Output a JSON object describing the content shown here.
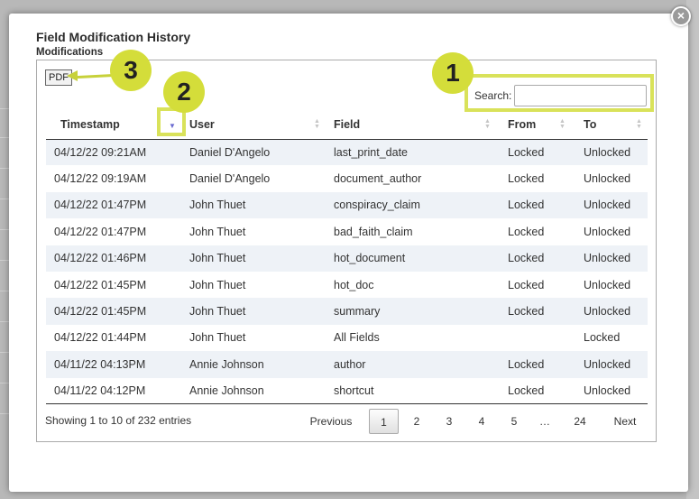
{
  "dialog": {
    "title": "Field Modification History",
    "subtitle": "Modifications",
    "close_label": "×"
  },
  "toolbar": {
    "pdf_label": "PDF",
    "search_label": "Search:",
    "search_value": ""
  },
  "table": {
    "columns": [
      {
        "label": "Timestamp",
        "sort": "desc"
      },
      {
        "label": "User",
        "sort": "none"
      },
      {
        "label": "Field",
        "sort": "none"
      },
      {
        "label": "From",
        "sort": "none"
      },
      {
        "label": "To",
        "sort": "none"
      }
    ],
    "rows": [
      [
        "04/12/22 09:21AM",
        "Daniel D'Angelo",
        "last_print_date",
        "Locked",
        "Unlocked"
      ],
      [
        "04/12/22 09:19AM",
        "Daniel D'Angelo",
        "document_author",
        "Locked",
        "Unlocked"
      ],
      [
        "04/12/22 01:47PM",
        "John Thuet",
        "conspiracy_claim",
        "Locked",
        "Unlocked"
      ],
      [
        "04/12/22 01:47PM",
        "John Thuet",
        "bad_faith_claim",
        "Locked",
        "Unlocked"
      ],
      [
        "04/12/22 01:46PM",
        "John Thuet",
        "hot_document",
        "Locked",
        "Unlocked"
      ],
      [
        "04/12/22 01:45PM",
        "John Thuet",
        "hot_doc",
        "Locked",
        "Unlocked"
      ],
      [
        "04/12/22 01:45PM",
        "John Thuet",
        "summary",
        "Locked",
        "Unlocked"
      ],
      [
        "04/12/22 01:44PM",
        "John Thuet",
        "All Fields",
        "",
        "Locked"
      ],
      [
        "04/11/22 04:13PM",
        "Annie Johnson",
        "author",
        "Locked",
        "Unlocked"
      ],
      [
        "04/11/22 04:12PM",
        "Annie Johnson",
        "shortcut",
        "Locked",
        "Unlocked"
      ]
    ]
  },
  "footer": {
    "info": "Showing 1 to 10 of 232 entries",
    "pagination": {
      "previous": "Previous",
      "pages": [
        "1",
        "2",
        "3",
        "4",
        "5",
        "…",
        "24"
      ],
      "current": "1",
      "next": "Next"
    }
  },
  "callouts": [
    "1",
    "2",
    "3"
  ],
  "colors": {
    "callout": "#d4dd3a",
    "highlight_box": "#d9e25a",
    "row_stripe": "#eef2f7",
    "sort_active": "#6a6ad0"
  }
}
